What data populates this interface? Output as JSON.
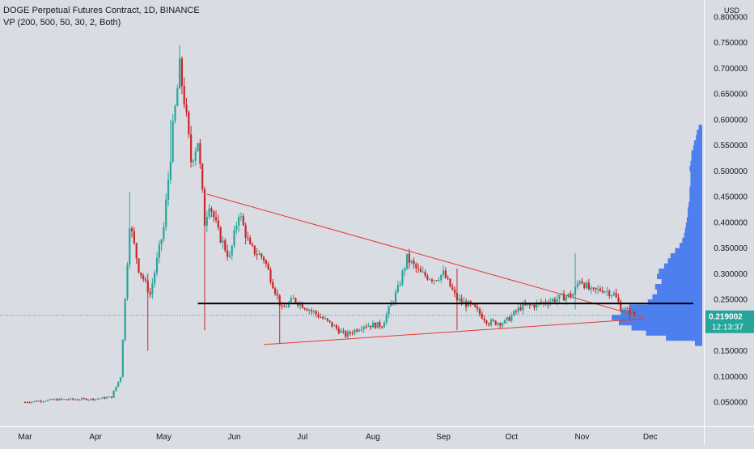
{
  "header": {
    "title": "DOGE Perpetual Futures Contract, 1D, BINANCE",
    "indicator": "VP (200, 500, 50, 30, 2, Both)"
  },
  "price_axis": {
    "currency": "USD"
  },
  "last_price": {
    "value": "0.219002",
    "countdown": "12:13:37",
    "color": "#26a69a"
  },
  "colors": {
    "background": "#d9dce3",
    "up": "#26a69a",
    "down": "#c62828",
    "trendline": "#e53935",
    "horizontal_line": "#000000",
    "volume_profile": "#4d7fee"
  },
  "chart_data": {
    "type": "candlestick",
    "title": "DOGE Perpetual Futures Contract, 1D, BINANCE",
    "y_axis": {
      "ticks": [
        "0.050000",
        "0.100000",
        "0.150000",
        "0.200000",
        "0.250000",
        "0.300000",
        "0.350000",
        "0.400000",
        "0.450000",
        "0.500000",
        "0.550000",
        "0.600000",
        "0.650000",
        "0.700000",
        "0.750000",
        "0.800000"
      ],
      "ylim": [
        0.0,
        0.8
      ]
    },
    "x_axis": {
      "ticks": [
        "Mar",
        "Apr",
        "May",
        "Jun",
        "Jul",
        "Aug",
        "Sep",
        "Oct",
        "Nov",
        "Dec"
      ],
      "range": [
        "2021-03-01",
        "2021-12-05"
      ]
    },
    "price_path": [
      [
        "2021-03-01",
        0.05
      ],
      [
        "2021-03-15",
        0.055
      ],
      [
        "2021-04-01",
        0.056
      ],
      [
        "2021-04-08",
        0.06
      ],
      [
        "2021-04-12",
        0.1
      ],
      [
        "2021-04-16",
        0.4
      ],
      [
        "2021-04-20",
        0.31
      ],
      [
        "2021-04-25",
        0.26
      ],
      [
        "2021-05-01",
        0.39
      ],
      [
        "2021-05-05",
        0.58
      ],
      [
        "2021-05-08",
        0.7
      ],
      [
        "2021-05-10",
        0.64
      ],
      [
        "2021-05-13",
        0.52
      ],
      [
        "2021-05-16",
        0.56
      ],
      [
        "2021-05-19",
        0.4
      ],
      [
        "2021-05-21",
        0.44
      ],
      [
        "2021-05-25",
        0.38
      ],
      [
        "2021-05-30",
        0.33
      ],
      [
        "2021-06-03",
        0.42
      ],
      [
        "2021-06-08",
        0.35
      ],
      [
        "2021-06-14",
        0.33
      ],
      [
        "2021-06-22",
        0.23
      ],
      [
        "2021-06-27",
        0.25
      ],
      [
        "2021-07-06",
        0.225
      ],
      [
        "2021-07-14",
        0.2
      ],
      [
        "2021-07-20",
        0.18
      ],
      [
        "2021-07-28",
        0.2
      ],
      [
        "2021-08-05",
        0.2
      ],
      [
        "2021-08-12",
        0.27
      ],
      [
        "2021-08-16",
        0.33
      ],
      [
        "2021-08-22",
        0.3
      ],
      [
        "2021-08-28",
        0.29
      ],
      [
        "2021-09-01",
        0.3
      ],
      [
        "2021-09-07",
        0.25
      ],
      [
        "2021-09-14",
        0.235
      ],
      [
        "2021-09-21",
        0.205
      ],
      [
        "2021-09-28",
        0.205
      ],
      [
        "2021-10-05",
        0.235
      ],
      [
        "2021-10-12",
        0.24
      ],
      [
        "2021-10-20",
        0.25
      ],
      [
        "2021-10-28",
        0.26
      ],
      [
        "2021-10-31",
        0.29
      ],
      [
        "2021-11-05",
        0.265
      ],
      [
        "2021-11-10",
        0.27
      ],
      [
        "2021-11-15",
        0.26
      ],
      [
        "2021-11-18",
        0.235
      ],
      [
        "2021-11-24",
        0.219
      ]
    ],
    "spikes": [
      {
        "date": "2021-04-16",
        "high": 0.46,
        "low": 0.35
      },
      {
        "date": "2021-05-08",
        "high": 0.745,
        "low": 0.66
      },
      {
        "date": "2021-05-19",
        "high": 0.47,
        "low": 0.19
      },
      {
        "date": "2021-04-24",
        "high": 0.3,
        "low": 0.15
      },
      {
        "date": "2021-05-04",
        "high": 0.6,
        "low": 0.5
      },
      {
        "date": "2021-06-21",
        "high": 0.26,
        "low": 0.165
      },
      {
        "date": "2021-09-07",
        "high": 0.31,
        "low": 0.19
      },
      {
        "date": "2021-10-29",
        "high": 0.34,
        "low": 0.23
      }
    ],
    "trendlines": [
      {
        "name": "descending-resistance",
        "from": [
          "2021-05-20",
          0.455
        ],
        "to": [
          "2021-11-28",
          0.215
        ]
      },
      {
        "name": "ascending-support",
        "from": [
          "2021-06-14",
          0.162
        ],
        "to": [
          "2021-11-28",
          0.212
        ]
      }
    ],
    "horizontal_line": {
      "value": 0.242,
      "from": "2021-05-16",
      "to": "2021-12-01"
    },
    "volume_profile": {
      "levels": [
        0.165,
        0.175,
        0.185,
        0.195,
        0.205,
        0.215,
        0.225,
        0.235,
        0.245,
        0.255,
        0.265,
        0.275,
        0.285,
        0.295,
        0.305,
        0.315,
        0.325,
        0.335,
        0.345,
        0.355,
        0.365,
        0.375,
        0.385,
        0.395,
        0.405,
        0.415,
        0.425,
        0.435,
        0.445,
        0.455,
        0.465,
        0.475,
        0.485,
        0.495,
        0.505,
        0.515,
        0.525,
        0.535,
        0.545,
        0.555,
        0.565,
        0.575,
        0.585
      ],
      "volumes": [
        0.08,
        0.4,
        0.62,
        0.78,
        0.92,
        1.0,
        0.9,
        0.8,
        0.6,
        0.55,
        0.5,
        0.52,
        0.45,
        0.5,
        0.48,
        0.42,
        0.38,
        0.35,
        0.3,
        0.25,
        0.22,
        0.2,
        0.19,
        0.18,
        0.17,
        0.16,
        0.16,
        0.15,
        0.14,
        0.14,
        0.14,
        0.13,
        0.13,
        0.13,
        0.14,
        0.13,
        0.12,
        0.12,
        0.1,
        0.09,
        0.07,
        0.06,
        0.04
      ]
    }
  }
}
